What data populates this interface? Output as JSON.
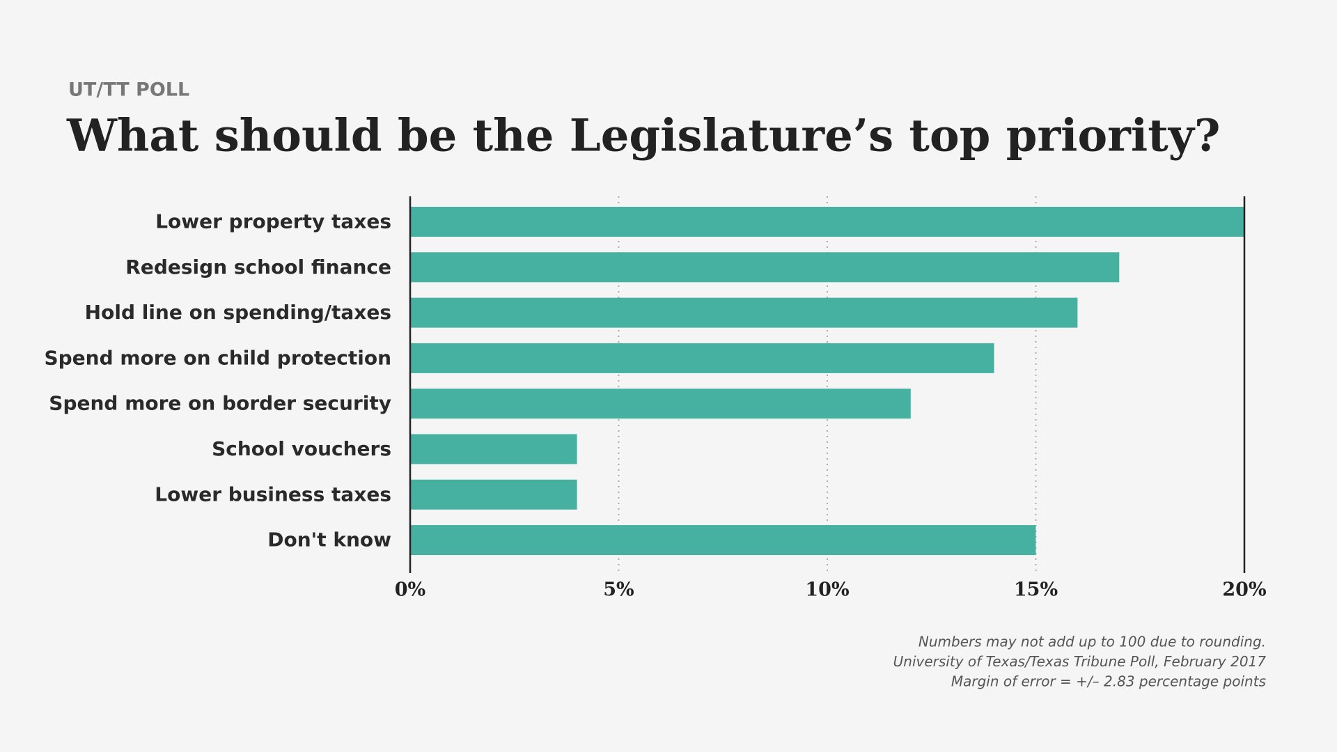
{
  "chart_data": {
    "type": "bar",
    "orientation": "horizontal",
    "subtitle": "UT/TT POLL",
    "title": "What should be the Legislature’s top priority?",
    "categories": [
      "Lower property taxes",
      "Redesign school finance",
      "Hold line on spending/taxes",
      "Spend more on child protection",
      "Spend more on border security",
      "School vouchers",
      "Lower business taxes",
      "Don't know"
    ],
    "values": [
      20,
      17,
      16,
      14,
      12,
      4,
      4,
      15
    ],
    "color": "#46b1a0",
    "xlim": [
      0,
      20
    ],
    "xticks": [
      {
        "value": 0,
        "label": "0%"
      },
      {
        "value": 5,
        "label": "5%"
      },
      {
        "value": 10,
        "label": "10%"
      },
      {
        "value": 15,
        "label": "15%"
      },
      {
        "value": 20,
        "label": "20%"
      }
    ],
    "grid": true,
    "notes": [
      "Numbers may not add up to 100 due to rounding.",
      "University of Texas/Texas Tribune Poll, February 2017",
      "Margin of error = +/– 2.83 percentage points"
    ]
  }
}
